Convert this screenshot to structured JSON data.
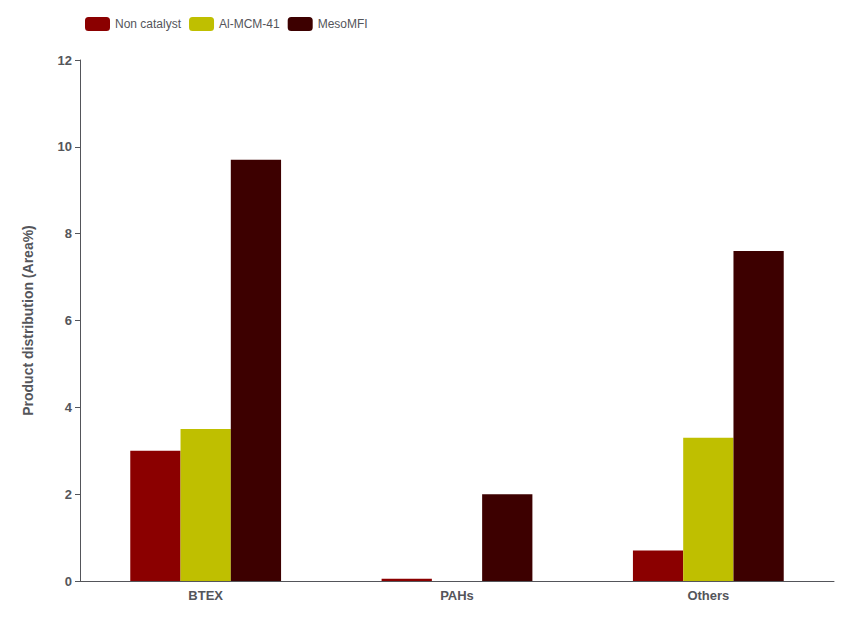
{
  "chart_data": {
    "type": "bar",
    "categories": [
      "BTEX",
      "PAHs",
      "Others"
    ],
    "series": [
      {
        "name": "Non catalyst",
        "color": "#8B0000",
        "values": [
          3.0,
          0.05,
          0.7
        ]
      },
      {
        "name": "Al-MCM-41",
        "color": "#BFBF00",
        "values": [
          3.5,
          0.0,
          3.3
        ]
      },
      {
        "name": "MesoMFI",
        "color": "#3D0000",
        "values": [
          9.7,
          2.0,
          7.6
        ]
      }
    ],
    "ylabel": "Product distribution (Area%)",
    "ylim": [
      0,
      12
    ],
    "yticks": [
      0,
      2,
      4,
      6,
      8,
      10,
      12
    ],
    "grid": false,
    "legend": "upper left"
  }
}
